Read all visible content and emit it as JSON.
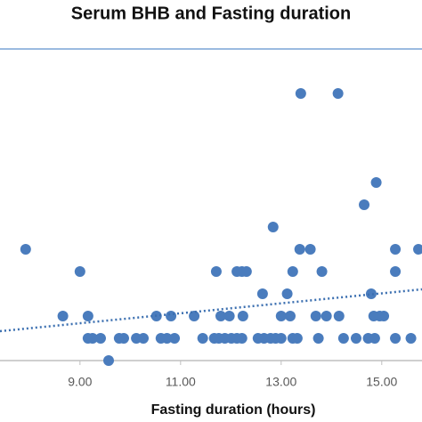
{
  "chart_data": {
    "type": "scatter",
    "title": "Serum BHB and Fasting duration",
    "x_label": "Fasting duration (hours)",
    "xlim": [
      7.41,
      15.8
    ],
    "ylim": [
      0,
      1.4
    ],
    "xticks": [
      {
        "value": 9,
        "label": "9.00"
      },
      {
        "value": 11,
        "label": "11.00"
      },
      {
        "value": 13,
        "label": "13.00"
      },
      {
        "value": 15,
        "label": "15.00"
      }
    ],
    "series": [
      {
        "color": "#4a7cbd",
        "x": [
          7.92,
          13.37,
          13.58,
          15.27,
          15.73,
          13.39,
          14.13,
          14.89,
          14.65,
          12.84,
          9.0,
          11.71,
          12.12,
          12.22,
          12.31,
          13.23,
          13.81,
          15.27,
          12.63,
          13.12,
          14.79,
          8.66,
          9.16,
          10.52,
          10.81,
          11.27,
          11.8,
          11.97,
          12.24,
          13.0,
          13.18,
          13.69,
          13.9,
          14.15,
          14.84,
          14.96,
          15.04,
          9.16,
          9.25,
          9.41,
          9.78,
          9.87,
          10.12,
          10.26,
          10.61,
          10.73,
          10.88,
          11.44,
          11.67,
          11.76,
          11.88,
          12.01,
          12.12,
          12.22,
          12.54,
          12.66,
          12.79,
          12.89,
          13.0,
          13.23,
          13.32,
          13.74,
          14.24,
          14.49,
          14.73,
          14.86,
          15.27,
          15.58,
          9.57
        ],
        "values": [
          0.5,
          0.5,
          0.5,
          0.5,
          0.5,
          1.2,
          1.2,
          0.8,
          0.7,
          0.6,
          0.4,
          0.4,
          0.4,
          0.4,
          0.4,
          0.4,
          0.4,
          0.4,
          0.3,
          0.3,
          0.3,
          0.2,
          0.2,
          0.2,
          0.2,
          0.2,
          0.2,
          0.2,
          0.2,
          0.2,
          0.2,
          0.2,
          0.2,
          0.2,
          0.2,
          0.2,
          0.2,
          0.1,
          0.1,
          0.1,
          0.1,
          0.1,
          0.1,
          0.1,
          0.1,
          0.1,
          0.1,
          0.1,
          0.1,
          0.1,
          0.1,
          0.1,
          0.1,
          0.1,
          0.1,
          0.1,
          0.1,
          0.1,
          0.1,
          0.1,
          0.1,
          0.1,
          0.1,
          0.1,
          0.1,
          0.1,
          0.1,
          0.1,
          0
        ]
      }
    ],
    "trendline": {
      "x": [
        7.41,
        15.8
      ],
      "y": [
        0.132,
        0.32
      ],
      "color": "#3b6fb0"
    }
  }
}
